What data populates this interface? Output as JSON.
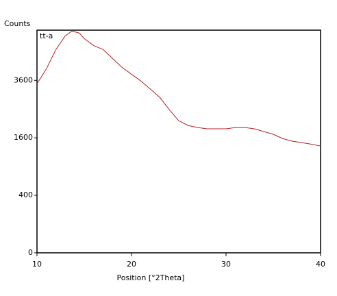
{
  "chart_data": {
    "type": "line",
    "y_label": "Counts",
    "x_label": "Position [°2Theta]",
    "y_scale": "sqrt",
    "x": [
      10,
      11,
      12,
      13,
      13.7,
      14.5,
      15,
      16,
      17,
      18,
      19,
      20,
      21,
      22,
      23,
      24,
      25,
      26,
      27,
      28,
      29,
      30,
      31,
      32,
      33,
      34,
      35,
      36,
      37,
      38,
      39,
      40
    ],
    "series": [
      {
        "name": "tt-a",
        "color": "#b22222",
        "values": [
          3460,
          4100,
          5000,
          5700,
          5950,
          5840,
          5550,
          5200,
          5000,
          4570,
          4160,
          3860,
          3570,
          3240,
          2920,
          2480,
          2110,
          1960,
          1900,
          1860,
          1860,
          1860,
          1900,
          1900,
          1860,
          1780,
          1700,
          1580,
          1510,
          1470,
          1430,
          1380
        ]
      }
    ],
    "xlim": [
      10,
      40
    ],
    "xticks": [
      10,
      20,
      30,
      40
    ],
    "ylim": [
      0,
      6000
    ],
    "yticks": [
      0,
      400,
      1600,
      3600
    ],
    "legend": "top-left"
  }
}
